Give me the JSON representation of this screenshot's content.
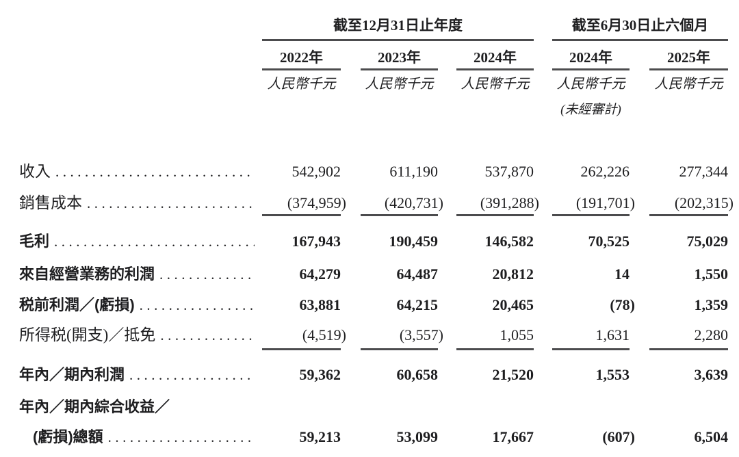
{
  "table": {
    "col_groups": [
      {
        "title": "截至12月31日止年度"
      },
      {
        "title": "截至6月30日止六個月"
      }
    ],
    "columns": [
      {
        "year": "2022年",
        "unit": "人民幣千元"
      },
      {
        "year": "2023年",
        "unit": "人民幣千元"
      },
      {
        "year": "2024年",
        "unit": "人民幣千元"
      },
      {
        "year": "2024年",
        "unit": "人民幣千元",
        "note": "(未經審計)"
      },
      {
        "year": "2025年",
        "unit": "人民幣千元"
      }
    ],
    "rows": [
      {
        "label": "收入",
        "bold": false,
        "leader": true,
        "values": [
          "542,902",
          "611,190",
          "537,870",
          "262,226",
          "277,344"
        ]
      },
      {
        "label": "銷售成本",
        "bold": false,
        "leader": true,
        "rule_below": true,
        "values": [
          "(374,959)",
          "(420,731)",
          "(391,288)",
          "(191,701)",
          "(202,315)"
        ]
      },
      {
        "label": "毛利",
        "bold": true,
        "leader": true,
        "values": [
          "167,943",
          "190,459",
          "146,582",
          "70,525",
          "75,029"
        ]
      },
      {
        "label": "來自經營業務的利潤",
        "bold": true,
        "leader": true,
        "values": [
          "64,279",
          "64,487",
          "20,812",
          "14",
          "1,550"
        ]
      },
      {
        "label": "税前利潤／(虧損)",
        "bold": true,
        "leader": true,
        "values": [
          "63,881",
          "64,215",
          "20,465",
          "(78)",
          "1,359"
        ]
      },
      {
        "label": "所得税(開支)／抵免",
        "bold": false,
        "leader": true,
        "rule_below": true,
        "values": [
          "(4,519)",
          "(3,557)",
          "1,055",
          "1,631",
          "2,280"
        ]
      },
      {
        "label": "年內／期內利潤",
        "bold": true,
        "leader": true,
        "values": [
          "59,362",
          "60,658",
          "21,520",
          "1,553",
          "3,639"
        ]
      },
      {
        "label": "年內／期內綜合收益／",
        "bold": true,
        "leader": false,
        "values": null
      },
      {
        "label": "(虧損)總額",
        "bold": true,
        "leader": true,
        "indent": true,
        "values": [
          "59,213",
          "53,099",
          "17,667",
          "(607)",
          "6,504"
        ]
      }
    ]
  }
}
